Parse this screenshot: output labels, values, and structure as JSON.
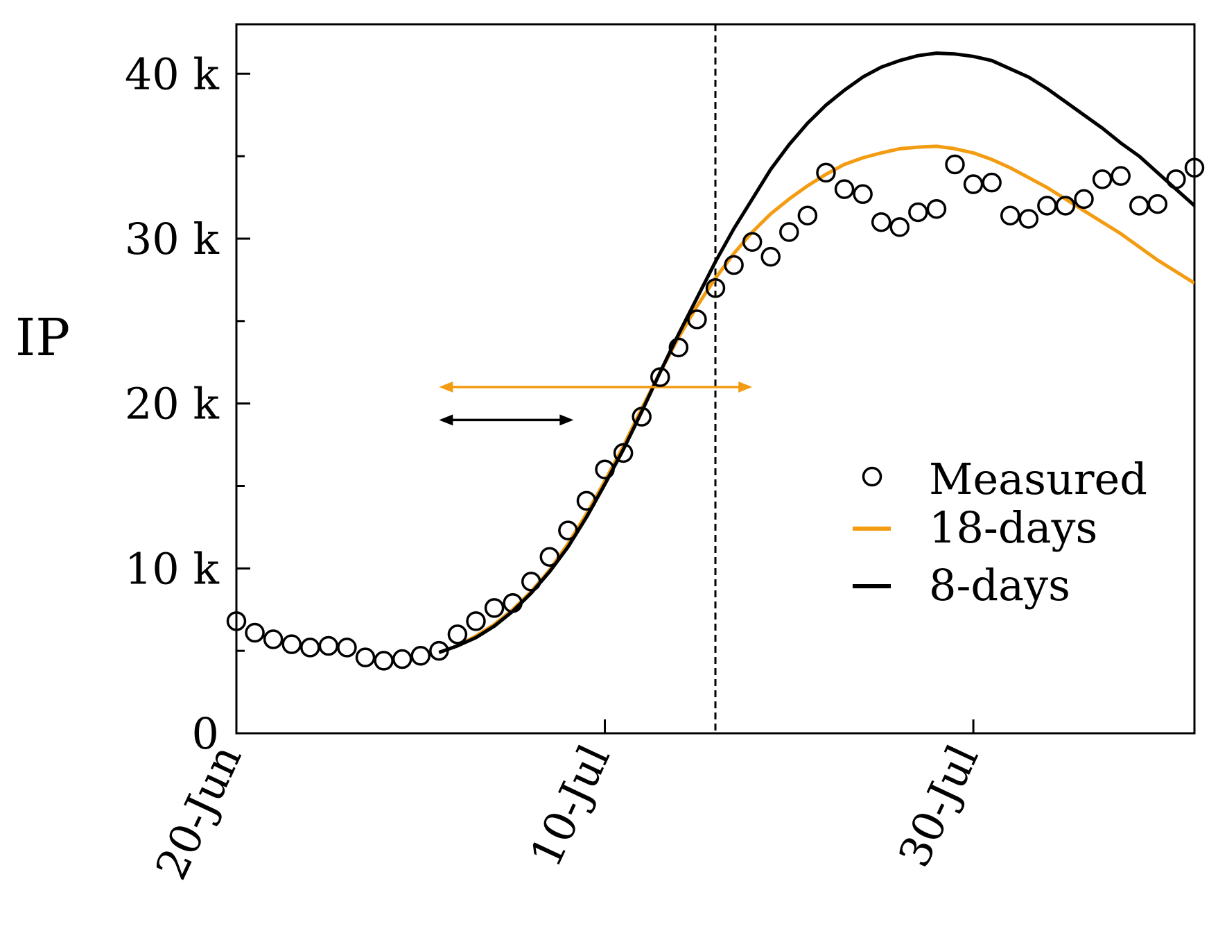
{
  "chart_data": {
    "type": "line",
    "title": "",
    "xlabel": "",
    "ylabel": "IP",
    "xlim": [
      0,
      52
    ],
    "ylim": [
      0,
      43000
    ],
    "x_ticks": [
      {
        "value": 0,
        "label": "20-Jun"
      },
      {
        "value": 20,
        "label": "10-Jul"
      },
      {
        "value": 40,
        "label": "30-Jul"
      }
    ],
    "y_ticks": [
      {
        "value": 0,
        "label": "0"
      },
      {
        "value": 10000,
        "label": "10 k"
      },
      {
        "value": 20000,
        "label": "20 k"
      },
      {
        "value": 30000,
        "label": "30 k"
      },
      {
        "value": 40000,
        "label": "40 k"
      }
    ],
    "y_minor_ticks": [
      5000,
      15000,
      25000,
      35000
    ],
    "vline_x": 26,
    "series": [
      {
        "name": "Measured",
        "kind": "scatter",
        "color": "#000000",
        "x": [
          0,
          1,
          2,
          3,
          4,
          5,
          6,
          7,
          8,
          9,
          10,
          11,
          12,
          13,
          14,
          15,
          16,
          17,
          18,
          19,
          20,
          21,
          22,
          23,
          24,
          25,
          26,
          27,
          28,
          29,
          30,
          31,
          32,
          33,
          34,
          35,
          36,
          37,
          38,
          39,
          40,
          41,
          42,
          43,
          44,
          45,
          46,
          47,
          48,
          49,
          50,
          51,
          52
        ],
        "y": [
          6800,
          6100,
          5700,
          5400,
          5200,
          5300,
          5200,
          4600,
          4400,
          4500,
          4700,
          5000,
          6000,
          6800,
          7600,
          7900,
          9200,
          10700,
          12300,
          14100,
          16000,
          17000,
          19200,
          21600,
          23400,
          25100,
          27000,
          28400,
          29800,
          28900,
          30400,
          31400,
          34000,
          33000,
          32700,
          31000,
          30700,
          31600,
          31800,
          34500,
          33300,
          33400,
          31400,
          31200,
          32000,
          32000,
          32400,
          33600,
          33800,
          32000,
          32100,
          33600,
          34300
        ]
      },
      {
        "name": "18-days",
        "kind": "line",
        "color": "#f39c12",
        "x": [
          11,
          12,
          13,
          14,
          15,
          16,
          17,
          18,
          19,
          20,
          21,
          22,
          23,
          24,
          25,
          26,
          27,
          28,
          29,
          30,
          31,
          32,
          33,
          34,
          35,
          36,
          37,
          38,
          39,
          40,
          41,
          42,
          43,
          44,
          45,
          46,
          47,
          48,
          49,
          50,
          51,
          52
        ],
        "y": [
          4900,
          5300,
          5900,
          6600,
          7500,
          8600,
          9900,
          11500,
          13300,
          15300,
          17400,
          19700,
          21900,
          24000,
          25900,
          27600,
          29100,
          30400,
          31500,
          32400,
          33200,
          33900,
          34500,
          34900,
          35200,
          35450,
          35550,
          35600,
          35450,
          35200,
          34800,
          34300,
          33700,
          33100,
          32400,
          31700,
          31000,
          30300,
          29500,
          28700,
          28000,
          27300
        ]
      },
      {
        "name": "8-days",
        "kind": "line",
        "color": "#000000",
        "x": [
          11,
          12,
          13,
          14,
          15,
          16,
          17,
          18,
          19,
          20,
          21,
          22,
          23,
          24,
          25,
          26,
          27,
          28,
          29,
          30,
          31,
          32,
          33,
          34,
          35,
          36,
          37,
          38,
          39,
          40,
          41,
          42,
          43,
          44,
          45,
          46,
          47,
          48,
          49,
          50,
          51,
          52
        ],
        "y": [
          4900,
          5300,
          5800,
          6500,
          7400,
          8500,
          9800,
          11300,
          13100,
          15100,
          17200,
          19500,
          21900,
          24200,
          26400,
          28600,
          30600,
          32400,
          34200,
          35700,
          37000,
          38100,
          39000,
          39800,
          40400,
          40800,
          41100,
          41250,
          41200,
          41050,
          40800,
          40300,
          39800,
          39100,
          38300,
          37500,
          36700,
          35800,
          35000,
          34000,
          33000,
          32000
        ]
      }
    ],
    "arrows": [
      {
        "color": "#f39c12",
        "x_start": 11,
        "x_end": 28,
        "y": 21000
      },
      {
        "color": "#000000",
        "x_start": 11,
        "x_end": 18.3,
        "y": 19000
      }
    ],
    "legend": {
      "position": "right",
      "entries": [
        {
          "label": "Measured",
          "marker": "circle",
          "color": "#000000"
        },
        {
          "label": "18-days",
          "marker": "line",
          "color": "#f39c12"
        },
        {
          "label": "  8-days",
          "marker": "line",
          "color": "#000000"
        }
      ]
    }
  }
}
